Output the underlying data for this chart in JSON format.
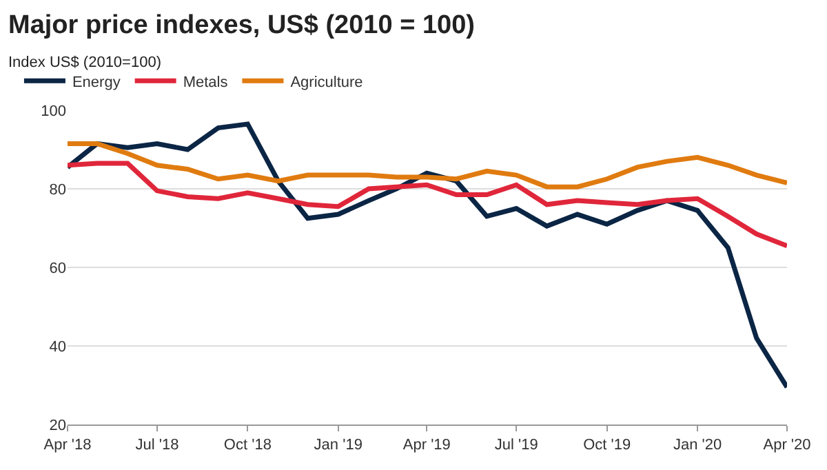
{
  "chart_data": {
    "type": "line",
    "title": "Major price indexes, US$ (2010 = 100)",
    "subtitle": "Index US$ (2010=100)",
    "x": [
      "2018-04",
      "2018-05",
      "2018-06",
      "2018-07",
      "2018-08",
      "2018-09",
      "2018-10",
      "2018-11",
      "2018-12",
      "2019-01",
      "2019-02",
      "2019-03",
      "2019-04",
      "2019-05",
      "2019-06",
      "2019-07",
      "2019-08",
      "2019-09",
      "2019-10",
      "2019-11",
      "2019-12",
      "2020-01",
      "2020-02",
      "2020-03",
      "2020-04"
    ],
    "series": [
      {
        "name": "Energy",
        "color": "#0b2545",
        "values": [
          85.5,
          91.5,
          90.5,
          91.5,
          90,
          95.5,
          96.5,
          82,
          72.5,
          73.5,
          77,
          80,
          84,
          82,
          73,
          75,
          70.5,
          73.5,
          71,
          74.5,
          77,
          74.5,
          65,
          42,
          29.5
        ]
      },
      {
        "name": "Metals",
        "color": "#e0263a",
        "values": [
          86,
          86.5,
          86.5,
          79.5,
          78,
          77.5,
          79,
          77.5,
          76,
          75.5,
          80,
          80.5,
          81,
          78.5,
          78.5,
          81,
          76,
          77,
          76.5,
          76,
          77,
          77.5,
          73,
          68.5,
          65.5
        ]
      },
      {
        "name": "Agriculture",
        "color": "#e07b10",
        "values": [
          91.5,
          91.5,
          89,
          86,
          85,
          82.5,
          83.5,
          82,
          83.5,
          83.5,
          83.5,
          83,
          83,
          82.5,
          84.5,
          83.5,
          80.5,
          80.5,
          82.5,
          85.5,
          87,
          88,
          86,
          83.5,
          81.5
        ]
      }
    ],
    "xlim": [
      "2018-04",
      "2020-04"
    ],
    "xticks": [
      {
        "value": "2018-04",
        "label": "Apr '18"
      },
      {
        "value": "2018-07",
        "label": "Jul '18"
      },
      {
        "value": "2018-10",
        "label": "Oct '18"
      },
      {
        "value": "2019-01",
        "label": "Jan '19"
      },
      {
        "value": "2019-04",
        "label": "Apr '19"
      },
      {
        "value": "2019-07",
        "label": "Jul '19"
      },
      {
        "value": "2019-10",
        "label": "Oct '19"
      },
      {
        "value": "2020-01",
        "label": "Jan '20"
      },
      {
        "value": "2020-04",
        "label": "Apr '20"
      }
    ],
    "ylim": [
      20,
      100
    ],
    "yticks": [
      20,
      40,
      60,
      80,
      100
    ],
    "grid": "y",
    "legend": "top left",
    "marker": "none",
    "line_style": "solid"
  }
}
